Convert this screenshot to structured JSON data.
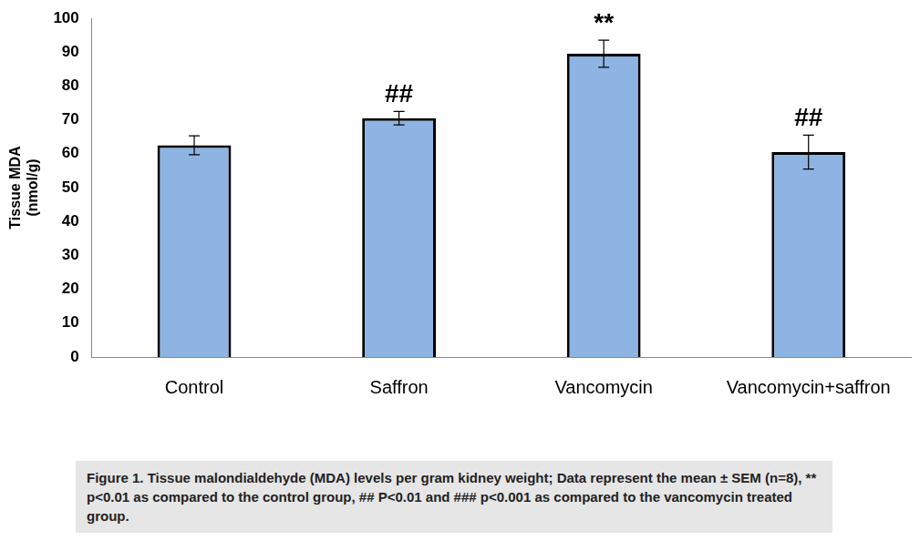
{
  "chart_data": {
    "type": "bar",
    "categories": [
      "Control",
      "Saffron",
      "Vancomycin",
      "Vancomycin+saffron"
    ],
    "values": [
      62.5,
      70.5,
      89.5,
      60.5
    ],
    "errors": [
      2.8,
      2.0,
      4.0,
      5.0
    ],
    "color": "#8eb4e3",
    "y_label": [
      "Tissue MDA",
      "(nmol/g)"
    ],
    "ylim": [
      0,
      100
    ],
    "yticks": [
      0,
      10,
      20,
      30,
      40,
      50,
      60,
      70,
      80,
      90,
      100
    ],
    "grid": false,
    "annotations": [
      {
        "category": "Saffron",
        "text": "##"
      },
      {
        "category": "Vancomycin",
        "text": "**"
      },
      {
        "category": "Vancomycin+saffron",
        "text": "##"
      }
    ],
    "caption": "Figure 1. Tissue malondialdehyde (MDA) levels per gram kidney weight; Data represent the mean ± SEM (n=8), ** p<0.01 as compared to the control group, ## P<0.01 and ### p<0.001 as compared to the vancomycin treated group."
  }
}
